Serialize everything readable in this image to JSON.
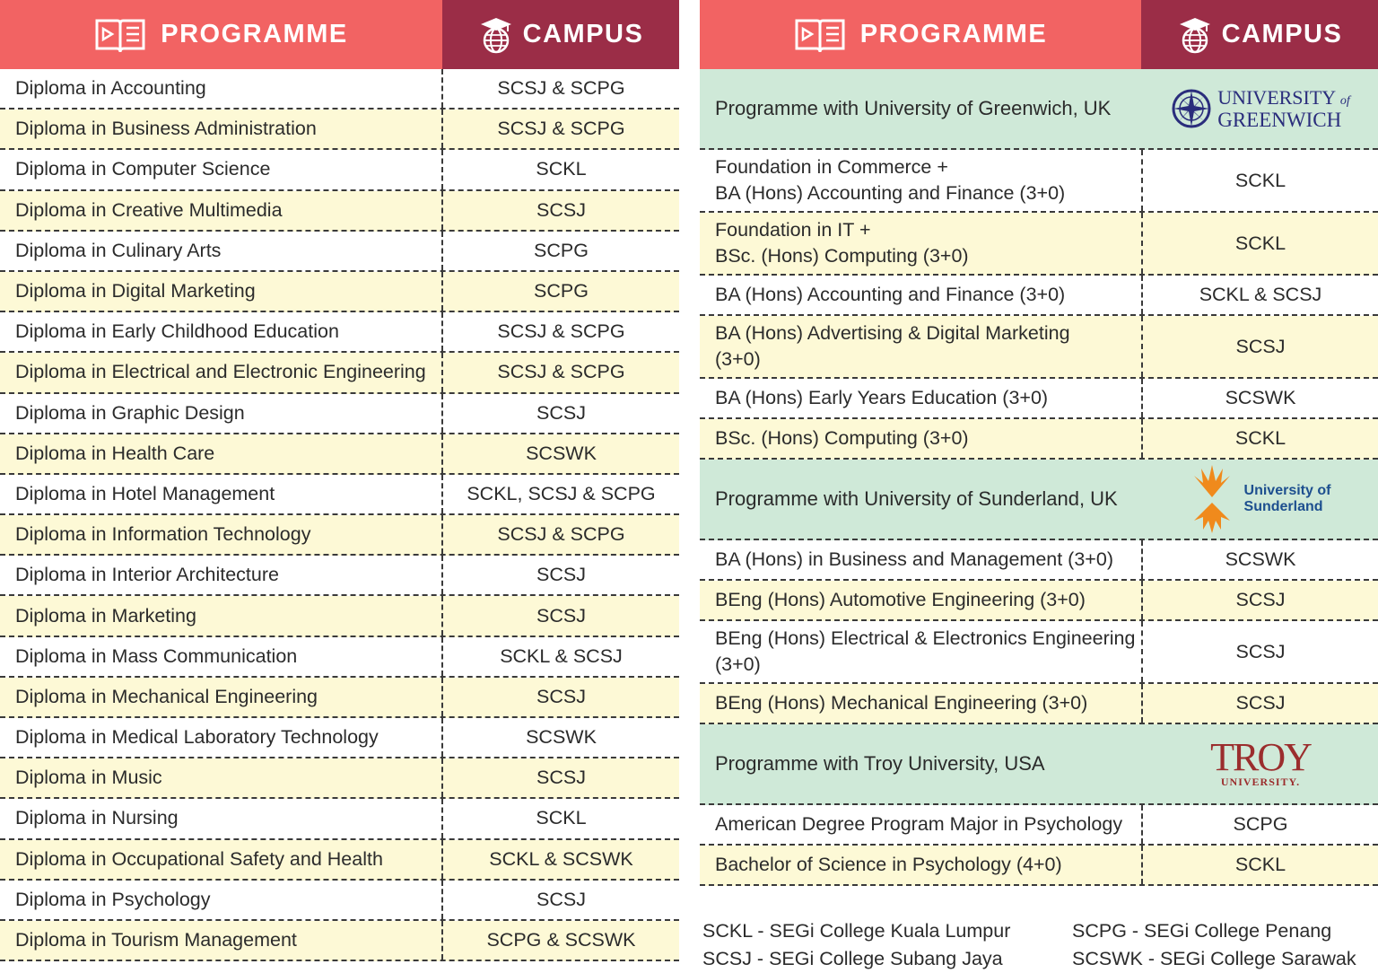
{
  "header": {
    "programme": "PROGRAMME",
    "campus": "CAMPUS"
  },
  "left_rows": [
    {
      "programme": "Diploma in Accounting",
      "campus": "SCSJ & SCPG"
    },
    {
      "programme": "Diploma in Business Administration",
      "campus": "SCSJ & SCPG"
    },
    {
      "programme": "Diploma in Computer Science",
      "campus": "SCKL"
    },
    {
      "programme": "Diploma in Creative Multimedia",
      "campus": "SCSJ"
    },
    {
      "programme": "Diploma in Culinary Arts",
      "campus": "SCPG"
    },
    {
      "programme": "Diploma in Digital Marketing",
      "campus": "SCPG"
    },
    {
      "programme": "Diploma in Early Childhood Education",
      "campus": "SCSJ & SCPG"
    },
    {
      "programme": "Diploma in Electrical and Electronic Engineering",
      "campus": "SCSJ & SCPG"
    },
    {
      "programme": "Diploma in Graphic Design",
      "campus": "SCSJ"
    },
    {
      "programme": "Diploma in Health Care",
      "campus": "SCSWK"
    },
    {
      "programme": "Diploma in Hotel Management",
      "campus": "SCKL, SCSJ & SCPG"
    },
    {
      "programme": "Diploma in Information Technology",
      "campus": "SCSJ & SCPG"
    },
    {
      "programme": "Diploma in Interior Architecture",
      "campus": "SCSJ"
    },
    {
      "programme": "Diploma in Marketing",
      "campus": "SCSJ"
    },
    {
      "programme": "Diploma in Mass Communication",
      "campus": "SCKL & SCSJ"
    },
    {
      "programme": "Diploma in Mechanical Engineering",
      "campus": "SCSJ"
    },
    {
      "programme": "Diploma in Medical Laboratory Technology",
      "campus": "SCSWK"
    },
    {
      "programme": "Diploma in Music",
      "campus": "SCSJ"
    },
    {
      "programme": "Diploma in Nursing",
      "campus": "SCKL"
    },
    {
      "programme": "Diploma in Occupational Safety and Health",
      "campus": "SCKL & SCSWK"
    },
    {
      "programme": "Diploma in Psychology",
      "campus": "SCSJ"
    },
    {
      "programme": "Diploma in Tourism Management",
      "campus": "SCPG & SCSWK"
    }
  ],
  "greenwich": {
    "title": "Programme with University of Greenwich, UK",
    "logo_line1": "UNIVERSITY",
    "logo_of": "of",
    "logo_line2": "GREENWICH",
    "rows": [
      {
        "line1": "Foundation in Commerce +",
        "line2": "BA (Hons) Accounting and Finance (3+0)",
        "campus": "SCKL"
      },
      {
        "line1": "Foundation in IT +",
        "line2": "BSc. (Hons) Computing (3+0)",
        "campus": "SCKL"
      },
      {
        "line1": "BA (Hons) Accounting and Finance (3+0)",
        "line2": "",
        "campus": "SCKL & SCSJ"
      },
      {
        "line1": "BA (Hons) Advertising & Digital Marketing",
        "line2": "(3+0)",
        "campus": "SCSJ"
      },
      {
        "line1": "BA (Hons) Early Years Education (3+0)",
        "line2": "",
        "campus": "SCSWK"
      },
      {
        "line1": "BSc. (Hons) Computing (3+0)",
        "line2": "",
        "campus": "SCKL"
      }
    ]
  },
  "sunderland": {
    "title": "Programme with University of Sunderland, UK",
    "logo_line1": "University of",
    "logo_line2": "Sunderland",
    "rows": [
      {
        "line1": "BA (Hons) in Business and Management (3+0)",
        "line2": "",
        "campus": "SCSWK"
      },
      {
        "line1": "BEng (Hons) Automotive Engineering (3+0)",
        "line2": "",
        "campus": "SCSJ"
      },
      {
        "line1": "BEng (Hons) Electrical & Electronics Engineering",
        "line2": "(3+0)",
        "campus": "SCSJ"
      },
      {
        "line1": "BEng (Hons) Mechanical Engineering (3+0)",
        "line2": "",
        "campus": "SCSJ"
      }
    ]
  },
  "troy": {
    "title": "Programme with Troy University, USA",
    "logo_line1": "TROY",
    "logo_line2": "UNIVERSITY.",
    "rows": [
      {
        "line1": "American Degree Program Major in Psychology",
        "line2": "",
        "campus": "SCPG"
      },
      {
        "line1": "Bachelor of Science in Psychology (4+0)",
        "line2": "",
        "campus": "SCKL"
      }
    ]
  },
  "legend": {
    "sckl": "SCKL - SEGi College Kuala Lumpur",
    "scpg": "SCPG - SEGi College Penang",
    "scsj": "SCSJ - SEGi College Subang Jaya",
    "scswk": "SCSWK - SEGi College Sarawak"
  },
  "colors": {
    "programme_header": "#f26363",
    "campus_header": "#9b2d47",
    "row_highlight": "#fdf9d6",
    "section_band": "#cfe9d8",
    "greenwich_blue": "#2a2d7c",
    "sunderland_orange": "#f08a1c",
    "sunderland_blue": "#1d4f8f",
    "troy_red": "#9b2d2d"
  }
}
